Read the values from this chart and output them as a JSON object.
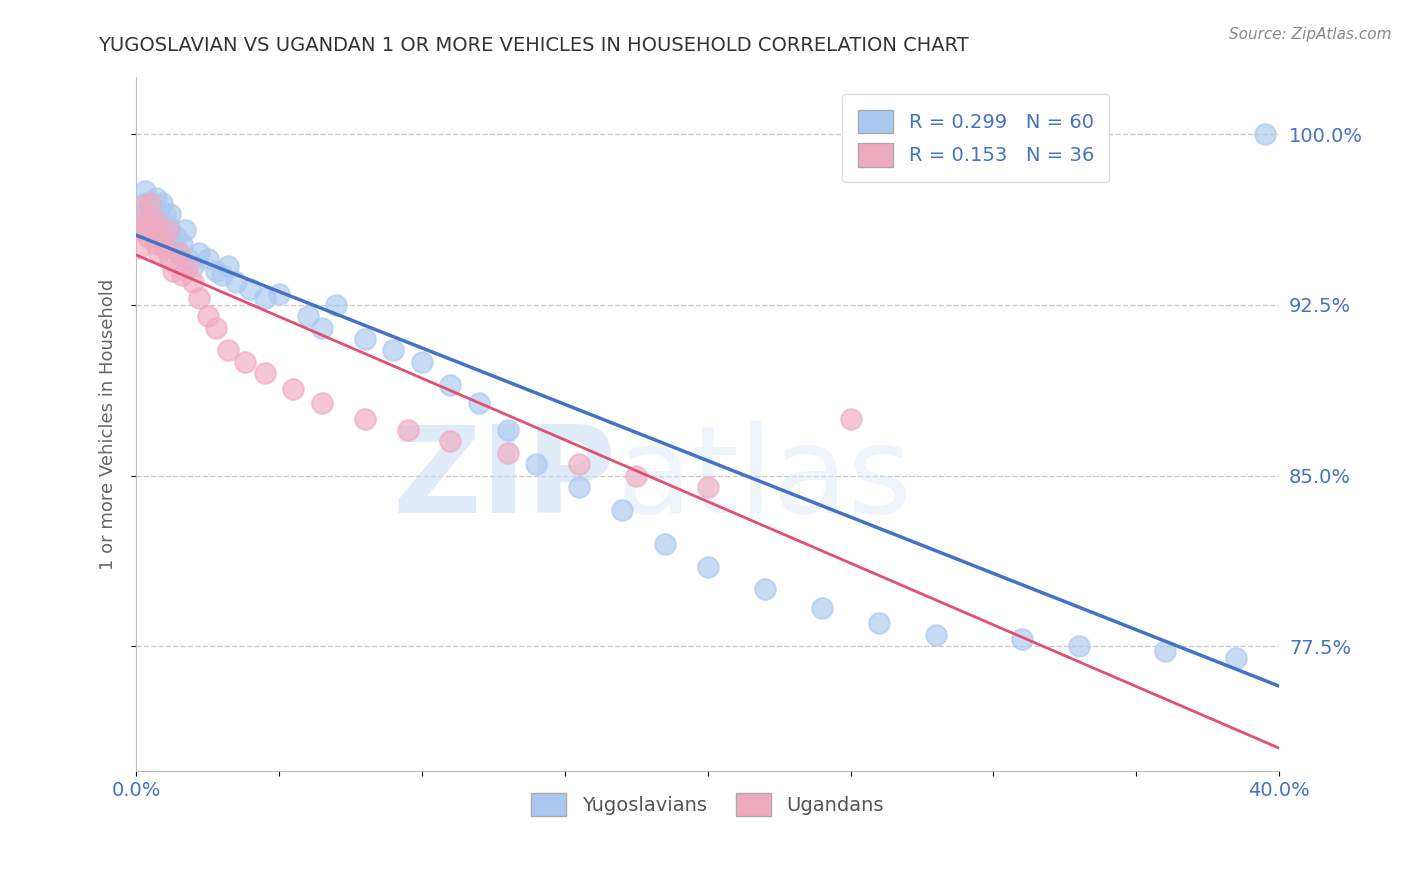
{
  "title": "YUGOSLAVIAN VS UGANDAN 1 OR MORE VEHICLES IN HOUSEHOLD CORRELATION CHART",
  "ylabel": "1 or more Vehicles in Household",
  "source_text": "Source: ZipAtlas.com",
  "watermark_zip": "ZIP",
  "watermark_atlas": "atlas",
  "xlim": [
    0.0,
    0.4
  ],
  "ylim": [
    0.72,
    1.025
  ],
  "yticks": [
    0.775,
    0.85,
    0.925,
    1.0
  ],
  "yticklabels": [
    "77.5%",
    "85.0%",
    "92.5%",
    "100.0%"
  ],
  "legend_r": [
    0.299,
    0.153
  ],
  "legend_n": [
    60,
    36
  ],
  "blue_color": "#aac8f0",
  "pink_color": "#f0aac0",
  "blue_line_color": "#4472c4",
  "pink_line_color": "#e05070",
  "grid_color": "#cccccc",
  "background_color": "#ffffff",
  "title_color": "#333333",
  "tick_label_color": "#4472c4",
  "yuga_x": [
    0.001,
    0.002,
    0.003,
    0.003,
    0.004,
    0.005,
    0.005,
    0.006,
    0.006,
    0.007,
    0.007,
    0.008,
    0.008,
    0.009,
    0.009,
    0.01,
    0.01,
    0.011,
    0.011,
    0.012,
    0.012,
    0.013,
    0.014,
    0.015,
    0.016,
    0.017,
    0.018,
    0.02,
    0.022,
    0.025,
    0.028,
    0.03,
    0.032,
    0.035,
    0.04,
    0.045,
    0.05,
    0.06,
    0.065,
    0.07,
    0.08,
    0.09,
    0.1,
    0.11,
    0.12,
    0.13,
    0.14,
    0.155,
    0.17,
    0.185,
    0.2,
    0.22,
    0.24,
    0.26,
    0.28,
    0.31,
    0.33,
    0.36,
    0.385,
    0.395
  ],
  "yuga_y": [
    0.96,
    0.965,
    0.97,
    0.975,
    0.96,
    0.965,
    0.97,
    0.958,
    0.968,
    0.96,
    0.972,
    0.955,
    0.965,
    0.96,
    0.97,
    0.955,
    0.965,
    0.96,
    0.952,
    0.958,
    0.965,
    0.95,
    0.955,
    0.948,
    0.952,
    0.958,
    0.945,
    0.942,
    0.948,
    0.945,
    0.94,
    0.938,
    0.942,
    0.935,
    0.932,
    0.928,
    0.93,
    0.92,
    0.915,
    0.925,
    0.91,
    0.905,
    0.9,
    0.89,
    0.882,
    0.87,
    0.855,
    0.845,
    0.835,
    0.82,
    0.81,
    0.8,
    0.792,
    0.785,
    0.78,
    0.778,
    0.775,
    0.773,
    0.77,
    1.0
  ],
  "ugan_x": [
    0.001,
    0.002,
    0.002,
    0.003,
    0.004,
    0.005,
    0.005,
    0.006,
    0.007,
    0.007,
    0.008,
    0.009,
    0.01,
    0.011,
    0.012,
    0.013,
    0.015,
    0.016,
    0.018,
    0.02,
    0.022,
    0.025,
    0.028,
    0.032,
    0.038,
    0.045,
    0.055,
    0.065,
    0.08,
    0.095,
    0.11,
    0.13,
    0.155,
    0.175,
    0.2,
    0.25
  ],
  "ugan_y": [
    0.95,
    0.958,
    0.968,
    0.96,
    0.955,
    0.962,
    0.97,
    0.958,
    0.952,
    0.962,
    0.948,
    0.955,
    0.95,
    0.958,
    0.945,
    0.94,
    0.948,
    0.938,
    0.942,
    0.935,
    0.928,
    0.92,
    0.915,
    0.905,
    0.9,
    0.895,
    0.888,
    0.882,
    0.875,
    0.87,
    0.865,
    0.86,
    0.855,
    0.85,
    0.845,
    0.875
  ]
}
